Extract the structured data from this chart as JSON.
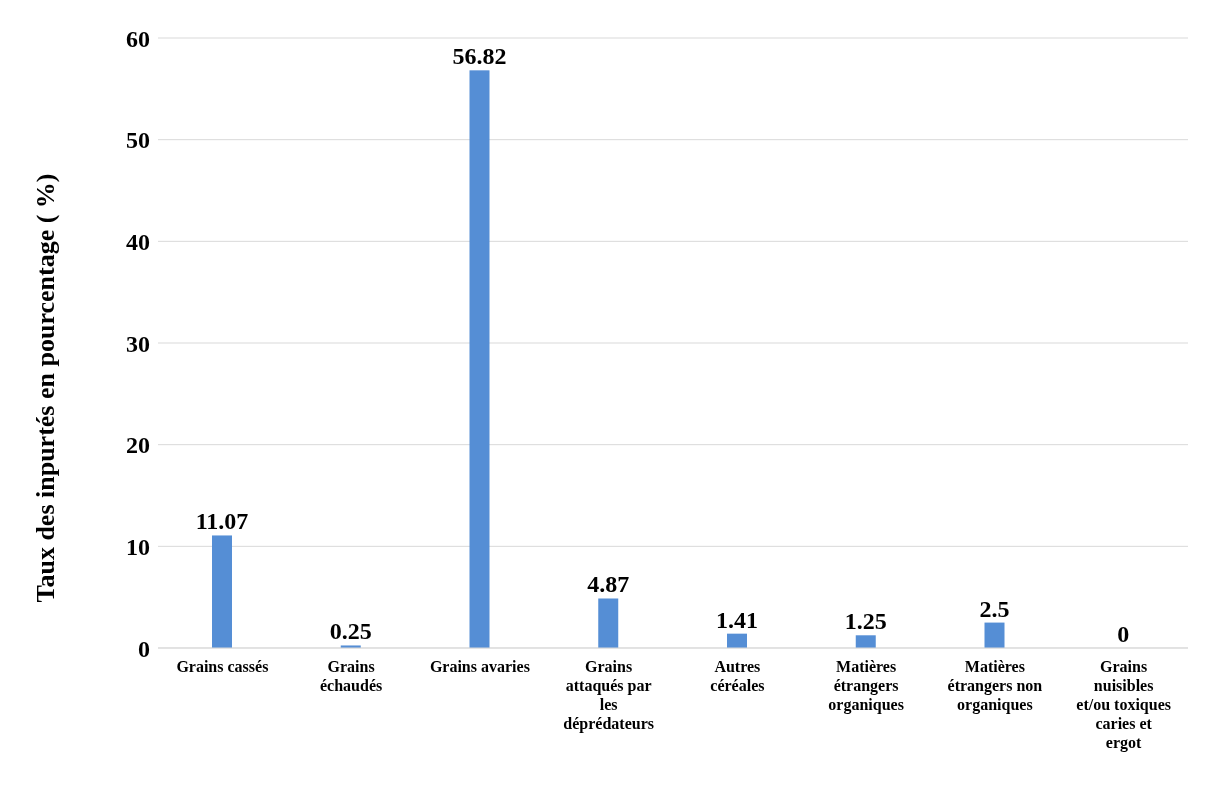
{
  "chart_data": {
    "type": "bar",
    "ylabel": "Taux  des inpurtés en pourcentage ( %)",
    "categories": [
      "Grains cassés",
      "Grains échaudés",
      "Grains avaries",
      "Grains attaqués par les déprédateurs",
      "Autres céréales",
      "Matières étrangers organiques",
      "Matières étrangers non organiques",
      "Grains nuisibles et/ou toxiques caries et ergot"
    ],
    "values": [
      11.07,
      0.25,
      56.82,
      4.87,
      1.41,
      1.25,
      2.5,
      0
    ],
    "color": "#558ed5",
    "ylim": [
      0,
      60
    ],
    "yticks": [
      0,
      10,
      20,
      30,
      40,
      50,
      60
    ],
    "grid": "y",
    "data_labels": true
  }
}
